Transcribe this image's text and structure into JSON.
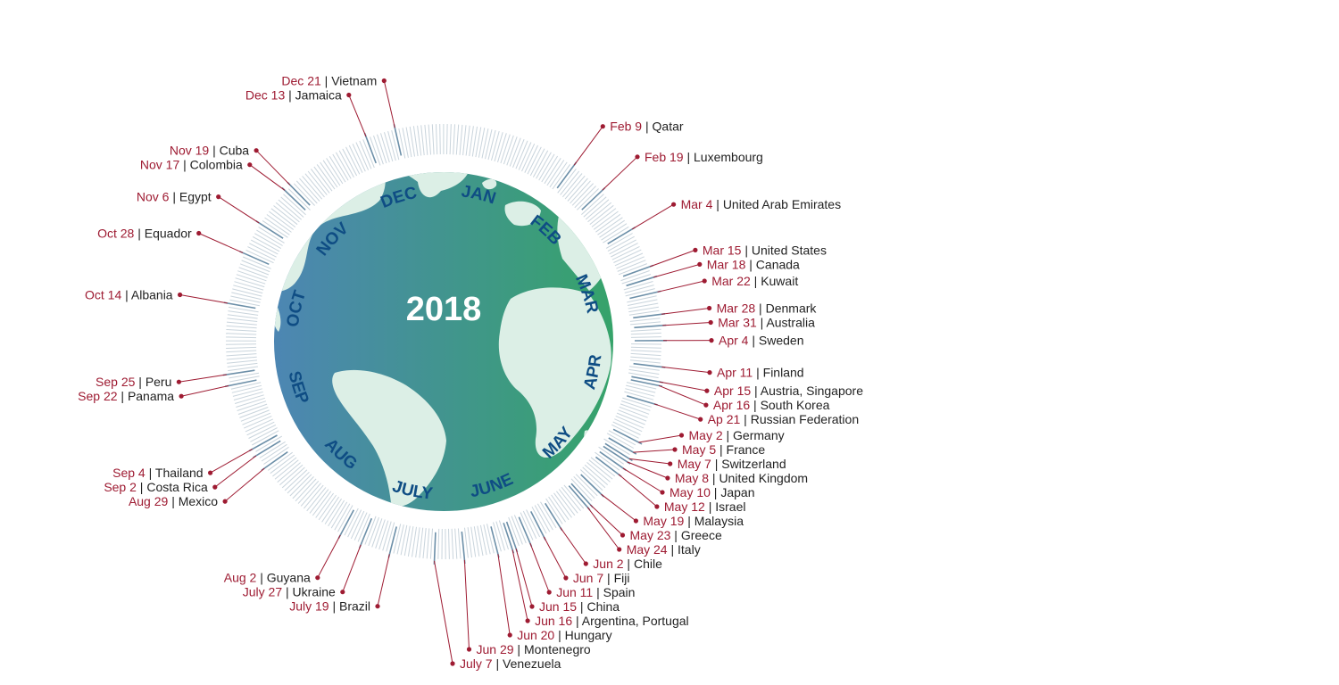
{
  "year": "2018",
  "colors": {
    "accent_date": "#9e1b32",
    "month_label": "#0f4d84",
    "globe_left": "#4d86b3",
    "globe_right": "#36a36a",
    "land_pale": "#dcefe6",
    "tick_light": "#c9d4dc",
    "tick_dark": "#6c8fa8"
  },
  "months": [
    "JAN",
    "FEB",
    "MAR",
    "APR",
    "MAY",
    "JUNE",
    "JULY",
    "AUG",
    "SEP",
    "OCT",
    "NOV",
    "DEC"
  ],
  "events": [
    {
      "date": "Dec 21",
      "country": "Vietnam",
      "day_of_year": 355
    },
    {
      "date": "Dec 13",
      "country": "Jamaica",
      "day_of_year": 347
    },
    {
      "date": "Nov 19",
      "country": "Cuba",
      "day_of_year": 323
    },
    {
      "date": "Nov 17",
      "country": "Colombia",
      "day_of_year": 321
    },
    {
      "date": "Nov 6",
      "country": "Egypt",
      "day_of_year": 310
    },
    {
      "date": "Oct 28",
      "country": "Equador",
      "day_of_year": 301
    },
    {
      "date": "Oct 14",
      "country": "Albania",
      "day_of_year": 287
    },
    {
      "date": "Sep 25",
      "country": "Peru",
      "day_of_year": 268
    },
    {
      "date": "Sep 22",
      "country": "Panama",
      "day_of_year": 265
    },
    {
      "date": "Sep 4",
      "country": "Thailand",
      "day_of_year": 247
    },
    {
      "date": "Sep 2",
      "country": "Costa Rica",
      "day_of_year": 245
    },
    {
      "date": "Aug 29",
      "country": "Mexico",
      "day_of_year": 241
    },
    {
      "date": "Aug 2",
      "country": "Guyana",
      "day_of_year": 214
    },
    {
      "date": "July 27",
      "country": "Ukraine",
      "day_of_year": 208
    },
    {
      "date": "July 19",
      "country": "Brazil",
      "day_of_year": 200
    },
    {
      "date": "July 7",
      "country": "Venezuela",
      "day_of_year": 188
    },
    {
      "date": "Jun 29",
      "country": "Montenegro",
      "day_of_year": 180
    },
    {
      "date": "Jun 20",
      "country": "Hungary",
      "day_of_year": 171
    },
    {
      "date": "Jun 16",
      "country": "Argentina, Portugal",
      "day_of_year": 167
    },
    {
      "date": "Jun 15",
      "country": "China",
      "day_of_year": 166
    },
    {
      "date": "Jun 11",
      "country": "Spain",
      "day_of_year": 162
    },
    {
      "date": "Jun 7",
      "country": "Fiji",
      "day_of_year": 158
    },
    {
      "date": "Jun 2",
      "country": "Chile",
      "day_of_year": 153
    },
    {
      "date": "May 24",
      "country": "Italy",
      "day_of_year": 144
    },
    {
      "date": "May 23",
      "country": "Greece",
      "day_of_year": 143
    },
    {
      "date": "May 19",
      "country": "Malaysia",
      "day_of_year": 139
    },
    {
      "date": "May 12",
      "country": "Israel",
      "day_of_year": 132
    },
    {
      "date": "May 10",
      "country": "Japan",
      "day_of_year": 130
    },
    {
      "date": "May 8",
      "country": "United Kingdom",
      "day_of_year": 128
    },
    {
      "date": "May 7",
      "country": "Switzerland",
      "day_of_year": 127
    },
    {
      "date": "May 5",
      "country": "France",
      "day_of_year": 125
    },
    {
      "date": "May 2",
      "country": "Germany",
      "day_of_year": 122
    },
    {
      "date": "Ap 21",
      "country": "Russian Federation",
      "day_of_year": 111
    },
    {
      "date": "Apr 16",
      "country": "South Korea",
      "day_of_year": 106
    },
    {
      "date": "Apr 15",
      "country": "Austria, Singapore",
      "day_of_year": 105
    },
    {
      "date": "Apr 11",
      "country": "Finland",
      "day_of_year": 101
    },
    {
      "date": "Apr 4",
      "country": "Sweden",
      "day_of_year": 94
    },
    {
      "date": "Mar 31",
      "country": "Australia",
      "day_of_year": 90
    },
    {
      "date": "Mar 28",
      "country": "Denmark",
      "day_of_year": 87
    },
    {
      "date": "Mar 22",
      "country": "Kuwait",
      "day_of_year": 81
    },
    {
      "date": "Mar 18",
      "country": "Canada",
      "day_of_year": 77
    },
    {
      "date": "Mar 15",
      "country": "United States",
      "day_of_year": 74
    },
    {
      "date": "Mar 4",
      "country": "United Arab Emirates",
      "day_of_year": 63
    },
    {
      "date": "Feb 19",
      "country": "Luxembourg",
      "day_of_year": 50
    },
    {
      "date": "Feb 9",
      "country": "Qatar",
      "day_of_year": 40
    }
  ]
}
